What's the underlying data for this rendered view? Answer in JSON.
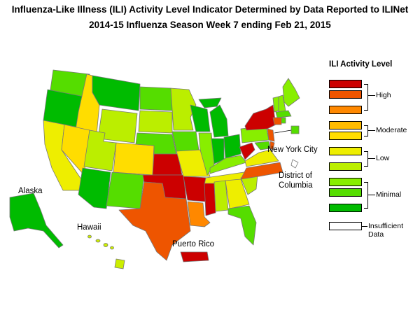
{
  "title_line1": "Influenza-Like Illness (ILI) Activity Level Indicator Determined by Data Reported to ILINet",
  "title_line2": "2014-15  Influenza Season Week  7 ending Feb 21, 2015",
  "labels": {
    "alaska": "Alaska",
    "hawaii": "Hawaii",
    "puerto_rico": "Puerto Rico",
    "nyc": "New York City",
    "dc_line1": "District of",
    "dc_line2": "Columbia"
  },
  "legend": {
    "title": "ILI Activity Level",
    "groups": [
      "High",
      "Moderate",
      "Low",
      "Minimal"
    ],
    "insufficient": "Insufficient Data",
    "colors": {
      "level10": "#cc0000",
      "level9": "#ee5500",
      "level8": "#ff8800",
      "level7": "#ffbb00",
      "level6": "#ffdd00",
      "level5": "#eeee00",
      "level4": "#bbee00",
      "level3": "#88ee00",
      "level2": "#55dd00",
      "level1": "#00bb00",
      "insufficient": "#ffffff"
    }
  }
}
